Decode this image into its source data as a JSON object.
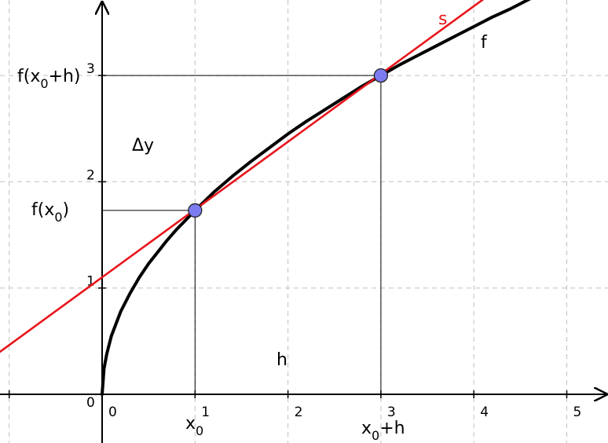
{
  "chart_data": {
    "type": "line",
    "xlim": [
      -1.1,
      5.4
    ],
    "ylim": [
      -0.1,
      3.7
    ],
    "grid": true,
    "x_ticks": [
      {
        "value": 0,
        "label": "0"
      },
      {
        "value": 1,
        "label": "1"
      },
      {
        "value": 2,
        "label": "2"
      },
      {
        "value": 3,
        "label": "3"
      },
      {
        "value": 4,
        "label": "4"
      },
      {
        "value": 5,
        "label": "5"
      }
    ],
    "y_ticks": [
      {
        "value": 0,
        "label": "0"
      },
      {
        "value": 1,
        "label": "1"
      },
      {
        "value": 2,
        "label": "2"
      },
      {
        "value": 3,
        "label": "3"
      }
    ],
    "series": [
      {
        "name": "f",
        "color": "#000000",
        "points": [
          [
            0,
            0
          ],
          [
            0.02,
            0.24
          ],
          [
            0.05,
            0.38
          ],
          [
            0.1,
            0.55
          ],
          [
            0.2,
            0.78
          ],
          [
            0.3,
            0.95
          ],
          [
            0.4,
            1.1
          ],
          [
            0.5,
            1.23
          ],
          [
            0.6,
            1.34
          ],
          [
            0.7,
            1.45
          ],
          [
            0.8,
            1.55
          ],
          [
            0.9,
            1.64
          ],
          [
            1.0,
            1.73
          ],
          [
            1.2,
            1.9
          ],
          [
            1.4,
            2.05
          ],
          [
            1.6,
            2.19
          ],
          [
            1.8,
            2.32
          ],
          [
            2.0,
            2.45
          ],
          [
            2.2,
            2.57
          ],
          [
            2.4,
            2.68
          ],
          [
            2.6,
            2.79
          ],
          [
            2.8,
            2.9
          ],
          [
            3.0,
            3.0
          ],
          [
            3.2,
            3.1
          ],
          [
            3.4,
            3.19
          ],
          [
            3.6,
            3.28
          ],
          [
            3.8,
            3.37
          ],
          [
            4.0,
            3.46
          ],
          [
            4.2,
            3.55
          ],
          [
            4.4,
            3.63
          ],
          [
            4.6,
            3.72
          ]
        ]
      },
      {
        "name": "s",
        "color": "#e8141b",
        "points": [
          [
            -1.1,
            0.4
          ],
          [
            4.2,
            3.78
          ]
        ]
      }
    ],
    "points": [
      {
        "id": "x0",
        "x": 1.0,
        "y": 1.73,
        "color": "#7c7cf0"
      },
      {
        "id": "x0h",
        "x": 3.0,
        "y": 3.0,
        "color": "#7c7cf0"
      }
    ],
    "guide_lines": [
      {
        "from": [
          0,
          1.73
        ],
        "to": [
          1.0,
          1.73
        ]
      },
      {
        "from": [
          1.0,
          0
        ],
        "to": [
          1.0,
          1.73
        ]
      },
      {
        "from": [
          0,
          3.0
        ],
        "to": [
          3.0,
          3.0
        ]
      },
      {
        "from": [
          3.0,
          0
        ],
        "to": [
          3.0,
          3.0
        ]
      }
    ],
    "annotations": {
      "f_label": "f",
      "s_label": "s",
      "delta_y": "Δy",
      "h": "h",
      "fx0": {
        "pre": "f(x",
        "sub": "0",
        "post": ")"
      },
      "fx0h": {
        "pre": "f(x",
        "sub": "0",
        "post": "+h)"
      },
      "x0": {
        "pre": "x",
        "sub": "0",
        "post": ""
      },
      "x0h": {
        "pre": "x",
        "sub": "0",
        "post": "+h"
      }
    },
    "colors": {
      "grid": "#c0c0c0",
      "axis": "#000000",
      "guide": "#000000"
    }
  }
}
